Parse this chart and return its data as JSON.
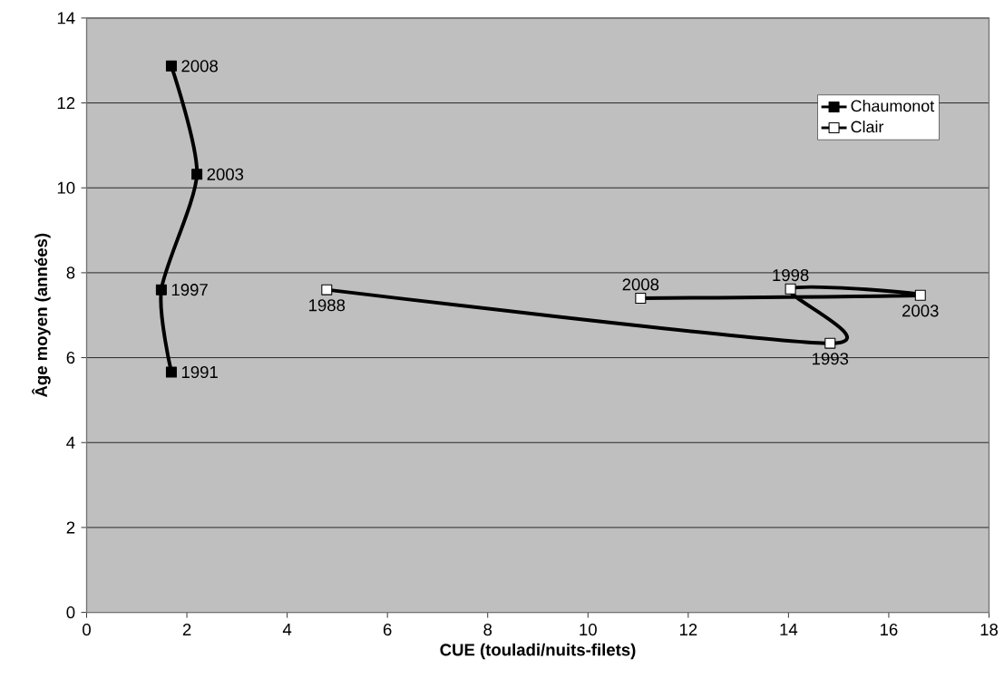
{
  "chart_data": {
    "type": "line",
    "xlabel": "CUE (touladi/nuits-filets)",
    "ylabel": "Âge moyen (années)",
    "xlim": [
      0,
      18
    ],
    "ylim": [
      0,
      14
    ],
    "xticks": [
      0,
      2,
      4,
      6,
      8,
      10,
      12,
      14,
      16,
      18
    ],
    "yticks": [
      0,
      2,
      4,
      6,
      8,
      10,
      12,
      14
    ],
    "grid": "y",
    "legend": "top right",
    "marker": "square",
    "line_style": "solid",
    "series": [
      {
        "name": "Chaumonot",
        "color": "#000000",
        "x": [
          1.69,
          1.49,
          2.2,
          1.69
        ],
        "values": [
          5.66,
          7.6,
          10.32,
          12.87
        ]
      },
      {
        "name": "Clair",
        "color": "#000000",
        "x": [
          4.79,
          14.83,
          14.04,
          16.63,
          11.05
        ],
        "values": [
          7.6,
          6.34,
          7.62,
          7.47,
          7.4
        ]
      }
    ],
    "annotations": [
      {
        "text": "1991",
        "x": 1.69,
        "y": 5.66
      },
      {
        "text": "1997",
        "x": 1.49,
        "y": 7.6
      },
      {
        "text": "2003",
        "x": 2.2,
        "y": 10.32
      },
      {
        "text": "2008",
        "x": 1.69,
        "y": 12.87
      },
      {
        "text": "1988",
        "x": 4.79,
        "y": 7.6
      },
      {
        "text": "1993",
        "x": 14.83,
        "y": 6.34
      },
      {
        "text": "1998",
        "x": 14.04,
        "y": 7.62
      },
      {
        "text": "2003",
        "x": 16.63,
        "y": 7.47
      },
      {
        "text": "2008",
        "x": 11.05,
        "y": 7.4
      }
    ]
  }
}
